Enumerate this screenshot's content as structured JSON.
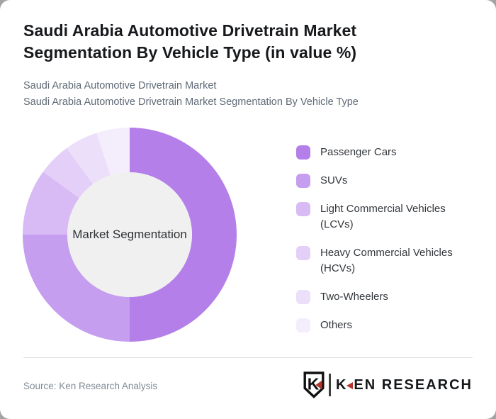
{
  "page": {
    "title": "Saudi Arabia Automotive Drivetrain Market Segmentation By Vehicle Type (in value %)",
    "subtitle1": "Saudi Arabia Automotive Drivetrain Market",
    "subtitle2": "Saudi Arabia Automotive Drivetrain Market Segmentation By Vehicle Type"
  },
  "chart_data": {
    "type": "pie",
    "variant": "donut",
    "title": "Saudi Arabia Automotive Drivetrain Market Segmentation By Vehicle Type (in value %)",
    "center_label": "Market Segmentation",
    "categories": [
      "Passenger Cars",
      "SUVs",
      "Light Commercial Vehicles (LCVs)",
      "Heavy Commercial Vehicles (HCVs)",
      "Two-Wheelers",
      "Others"
    ],
    "values": [
      50,
      25,
      10,
      5,
      5,
      5
    ],
    "colors": [
      "#b47fe8",
      "#c69eef",
      "#d8bbf4",
      "#e3cff7",
      "#ecdff9",
      "#f4eefc"
    ],
    "start_angle_deg": 0,
    "direction": "clockwise",
    "legend_position": "right",
    "inner_fill": "#f0f0f0",
    "outer_radius": 151,
    "inner_radius": 88
  },
  "footer": {
    "source": "Source: Ken Research Analysis",
    "logo": {
      "shield_letter": "K",
      "brand_first_letter": "K",
      "brand_rest": "EN RESEARCH",
      "accent": "#b5342c"
    }
  }
}
